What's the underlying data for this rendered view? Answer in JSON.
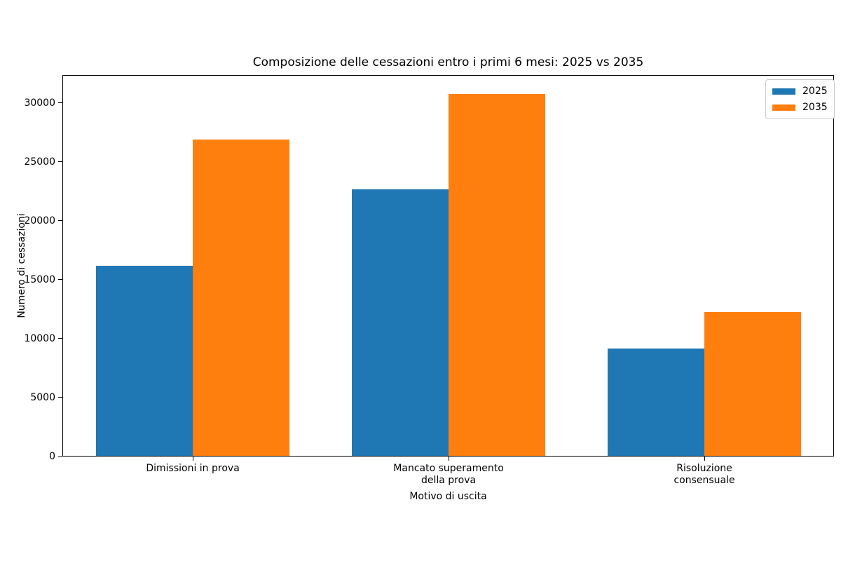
{
  "title": "Composizione delle cessazioni entro i primi 6 mesi: 2025 vs 2035",
  "chart_data": {
    "type": "bar",
    "title": "Composizione delle cessazioni entro i primi 6 mesi: 2025 vs 2035",
    "xlabel": "Motivo di uscita",
    "ylabel": "Numero di cessazioni",
    "categories": [
      "Dimissioni in prova",
      "Mancato superamento\ndella prova",
      "Risoluzione\nconsensuale"
    ],
    "series": [
      {
        "name": "2025",
        "color": "#1f77b4",
        "values": [
          16200,
          22650,
          9150
        ]
      },
      {
        "name": "2035",
        "color": "#ff7f0e",
        "values": [
          26900,
          30750,
          12250
        ]
      }
    ],
    "yticks": [
      0,
      5000,
      10000,
      15000,
      20000,
      25000,
      30000
    ],
    "ylim": [
      0,
      32350
    ],
    "grid": false,
    "legend": {
      "position": "upper right",
      "entries": [
        "2025",
        "2035"
      ]
    }
  },
  "colors": {
    "series_2025": "#1f77b4",
    "series_2035": "#ff7f0e",
    "text": "#000000",
    "legend_border": "#cccccc",
    "background": "#ffffff"
  }
}
